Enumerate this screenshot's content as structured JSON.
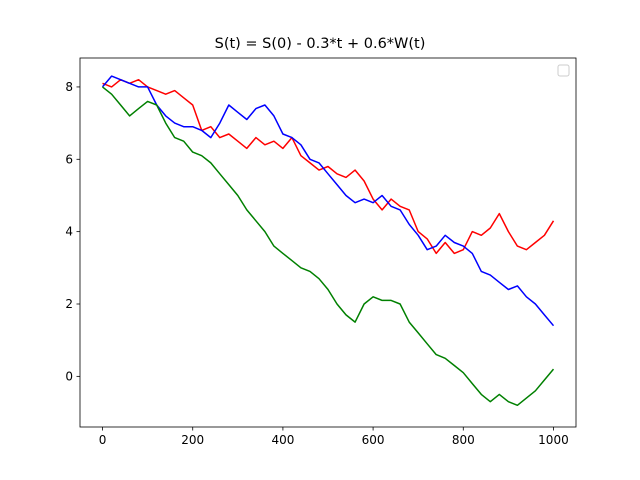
{
  "chart_data": {
    "type": "line",
    "title": "S(t) = S(0) - 0.3*t + 0.6*W(t)",
    "xlabel": "",
    "ylabel": "",
    "xlim": [
      -50,
      1050
    ],
    "ylim": [
      -1.4,
      8.8
    ],
    "xticks": [
      0,
      200,
      400,
      600,
      800,
      1000
    ],
    "yticks": [
      0,
      2,
      4,
      6,
      8
    ],
    "grid": false,
    "legend": {
      "placement": "top-right",
      "entries": []
    },
    "series": [
      {
        "color": "#ff0000",
        "x": [
          0,
          20,
          40,
          60,
          80,
          100,
          120,
          140,
          160,
          180,
          200,
          220,
          240,
          260,
          280,
          300,
          320,
          340,
          360,
          380,
          400,
          420,
          440,
          460,
          480,
          500,
          520,
          540,
          560,
          580,
          600,
          620,
          640,
          660,
          680,
          700,
          720,
          740,
          760,
          780,
          800,
          820,
          840,
          860,
          880,
          900,
          920,
          940,
          960,
          980,
          1000
        ],
        "values": [
          8.1,
          8.0,
          8.2,
          8.1,
          8.2,
          8.0,
          7.9,
          7.8,
          7.9,
          7.7,
          7.5,
          6.8,
          6.9,
          6.6,
          6.7,
          6.5,
          6.3,
          6.6,
          6.4,
          6.5,
          6.3,
          6.6,
          6.1,
          5.9,
          5.7,
          5.8,
          5.6,
          5.5,
          5.7,
          5.4,
          4.9,
          4.6,
          4.9,
          4.7,
          4.6,
          4.0,
          3.8,
          3.4,
          3.7,
          3.4,
          3.5,
          4.0,
          3.9,
          4.1,
          4.5,
          4.0,
          3.6,
          3.5,
          3.7,
          3.9,
          4.3
        ]
      },
      {
        "color": "#0000ff",
        "x": [
          0,
          20,
          40,
          60,
          80,
          100,
          120,
          140,
          160,
          180,
          200,
          220,
          240,
          260,
          280,
          300,
          320,
          340,
          360,
          380,
          400,
          420,
          440,
          460,
          480,
          500,
          520,
          540,
          560,
          580,
          600,
          620,
          640,
          660,
          680,
          700,
          720,
          740,
          760,
          780,
          800,
          820,
          840,
          860,
          880,
          900,
          920,
          940,
          960,
          980,
          1000
        ],
        "values": [
          8.0,
          8.3,
          8.2,
          8.1,
          8.0,
          8.0,
          7.5,
          7.2,
          7.0,
          6.9,
          6.9,
          6.8,
          6.6,
          7.0,
          7.5,
          7.3,
          7.1,
          7.4,
          7.5,
          7.2,
          6.7,
          6.6,
          6.4,
          6.0,
          5.9,
          5.6,
          5.3,
          5.0,
          4.8,
          4.9,
          4.8,
          5.0,
          4.7,
          4.6,
          4.2,
          3.9,
          3.5,
          3.6,
          3.9,
          3.7,
          3.6,
          3.4,
          2.9,
          2.8,
          2.6,
          2.4,
          2.5,
          2.2,
          2.0,
          1.7,
          1.4
        ]
      },
      {
        "color": "#008000",
        "x": [
          0,
          20,
          40,
          60,
          80,
          100,
          120,
          140,
          160,
          180,
          200,
          220,
          240,
          260,
          280,
          300,
          320,
          340,
          360,
          380,
          400,
          420,
          440,
          460,
          480,
          500,
          520,
          540,
          560,
          580,
          600,
          620,
          640,
          660,
          680,
          700,
          720,
          740,
          760,
          780,
          800,
          820,
          840,
          860,
          880,
          900,
          920,
          940,
          960,
          980,
          1000
        ],
        "values": [
          8.0,
          7.8,
          7.5,
          7.2,
          7.4,
          7.6,
          7.5,
          7.0,
          6.6,
          6.5,
          6.2,
          6.1,
          5.9,
          5.6,
          5.3,
          5.0,
          4.6,
          4.3,
          4.0,
          3.6,
          3.4,
          3.2,
          3.0,
          2.9,
          2.7,
          2.4,
          2.0,
          1.7,
          1.5,
          2.0,
          2.2,
          2.1,
          2.1,
          2.0,
          1.5,
          1.2,
          0.9,
          0.6,
          0.5,
          0.3,
          0.1,
          -0.2,
          -0.5,
          -0.7,
          -0.5,
          -0.7,
          -0.8,
          -0.6,
          -0.4,
          -0.1,
          0.2
        ]
      }
    ]
  }
}
